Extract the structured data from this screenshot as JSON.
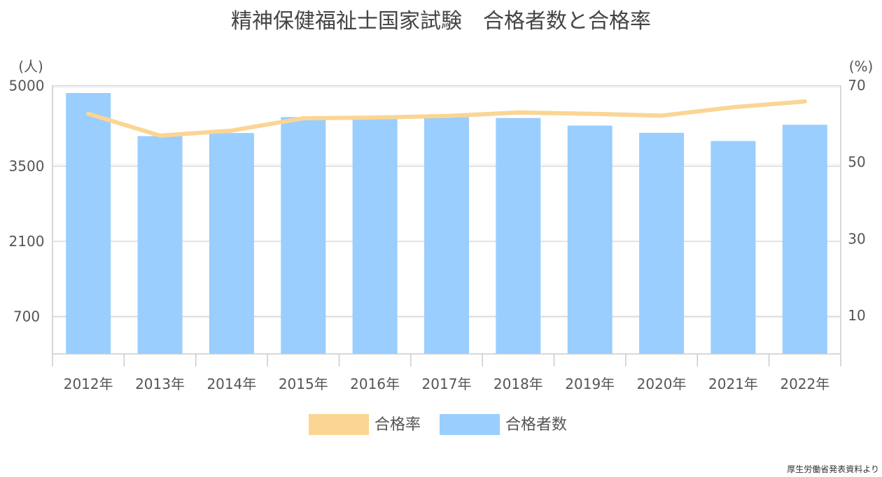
{
  "chart_data": {
    "type": "bar+line",
    "title": "精神保健福祉士国家試験　合格者数と合格率",
    "categories": [
      "2012年",
      "2013年",
      "2014年",
      "2015年",
      "2016年",
      "2017年",
      "2018年",
      "2019年",
      "2020年",
      "2021年",
      "2022年"
    ],
    "series": [
      {
        "name": "合格者数",
        "type": "bar",
        "axis": "left",
        "color": "#99ceff",
        "values": [
          4865,
          4062,
          4119,
          4417,
          4399,
          4414,
          4399,
          4258,
          4123,
          3970,
          4273
        ]
      },
      {
        "name": "合格率",
        "type": "line",
        "axis": "right",
        "color": "#fbd594",
        "values": [
          62.6,
          56.9,
          58.2,
          61.4,
          61.6,
          62.0,
          62.9,
          62.6,
          62.1,
          64.3,
          65.8
        ]
      }
    ],
    "y_left": {
      "unit": "(人)",
      "ticks": [
        700,
        2100,
        3500,
        5000
      ],
      "range": [
        0,
        5000
      ]
    },
    "y_right": {
      "unit": "(%)",
      "ticks": [
        10,
        30,
        50,
        70
      ],
      "range": [
        0,
        70
      ]
    },
    "grid": true,
    "legend_position": "bottom"
  },
  "source_note": "厚生労働省発表資料より"
}
